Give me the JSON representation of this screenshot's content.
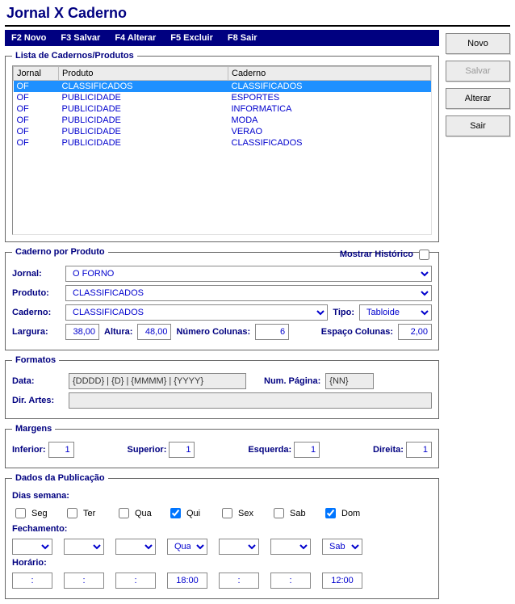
{
  "title": "Jornal X Caderno",
  "menu": {
    "novo": "F2 Novo",
    "salvar": "F3 Salvar",
    "alterar": "F4 Alterar",
    "excluir": "F5 Excluir",
    "sair": "F8 Sair"
  },
  "buttons": {
    "novo": "Novo",
    "salvar": "Salvar",
    "alterar": "Alterar",
    "sair": "Sair"
  },
  "lista": {
    "legend": "Lista de Cadernos/Produtos",
    "headers": {
      "jornal": "Jornal",
      "produto": "Produto",
      "caderno": "Caderno"
    },
    "rows": [
      {
        "jornal": "OF",
        "produto": "CLASSIFICADOS",
        "caderno": "CLASSIFICADOS",
        "selected": true
      },
      {
        "jornal": "OF",
        "produto": "PUBLICIDADE",
        "caderno": "ESPORTES"
      },
      {
        "jornal": "OF",
        "produto": "PUBLICIDADE",
        "caderno": "INFORMATICA"
      },
      {
        "jornal": "OF",
        "produto": "PUBLICIDADE",
        "caderno": "MODA"
      },
      {
        "jornal": "OF",
        "produto": "PUBLICIDADE",
        "caderno": "VERAO"
      },
      {
        "jornal": "OF",
        "produto": "PUBLICIDADE",
        "caderno": "CLASSIFICADOS"
      }
    ]
  },
  "cp": {
    "legend": "Caderno por Produto",
    "mostrar_historico": "Mostrar Histórico",
    "jornal_lbl": "Jornal:",
    "jornal_val": "O FORNO",
    "produto_lbl": "Produto:",
    "produto_val": "CLASSIFICADOS",
    "caderno_lbl": "Caderno:",
    "caderno_val": "CLASSIFICADOS",
    "tipo_lbl": "Tipo:",
    "tipo_val": "Tabloide",
    "largura_lbl": "Largura:",
    "largura_val": "38,00",
    "altura_lbl": "Altura:",
    "altura_val": "48,00",
    "numcol_lbl": "Número Colunas:",
    "numcol_val": "6",
    "espcol_lbl": "Espaço Colunas:",
    "espcol_val": "2,00"
  },
  "fmt": {
    "legend": "Formatos",
    "data_lbl": "Data:",
    "data_val": "{DDDD} | {D} | {MMMM} | {YYYY}",
    "numpag_lbl": "Num. Página:",
    "numpag_val": "{NN}",
    "dirartes_lbl": "Dir. Artes:",
    "dirartes_val": ""
  },
  "mg": {
    "legend": "Margens",
    "inferior_lbl": "Inferior:",
    "inferior_val": "1",
    "superior_lbl": "Superior:",
    "superior_val": "1",
    "esquerda_lbl": "Esquerda:",
    "esquerda_val": "1",
    "direita_lbl": "Direita:",
    "direita_val": "1"
  },
  "pub": {
    "legend": "Dados da Publicação",
    "dias_lbl": "Dias semana:",
    "fech_lbl": "Fechamento:",
    "hora_lbl": "Horário:",
    "days": [
      {
        "abbr": "Seg",
        "checked": false,
        "fech": "",
        "hora": ":"
      },
      {
        "abbr": "Ter",
        "checked": false,
        "fech": "",
        "hora": ":"
      },
      {
        "abbr": "Qua",
        "checked": false,
        "fech": "",
        "hora": ":"
      },
      {
        "abbr": "Qui",
        "checked": true,
        "fech": "Qua",
        "hora": "18:00"
      },
      {
        "abbr": "Sex",
        "checked": false,
        "fech": "",
        "hora": ":"
      },
      {
        "abbr": "Sab",
        "checked": false,
        "fech": "",
        "hora": ":"
      },
      {
        "abbr": "Dom",
        "checked": true,
        "fech": "Sab",
        "hora": "12:00"
      }
    ]
  }
}
